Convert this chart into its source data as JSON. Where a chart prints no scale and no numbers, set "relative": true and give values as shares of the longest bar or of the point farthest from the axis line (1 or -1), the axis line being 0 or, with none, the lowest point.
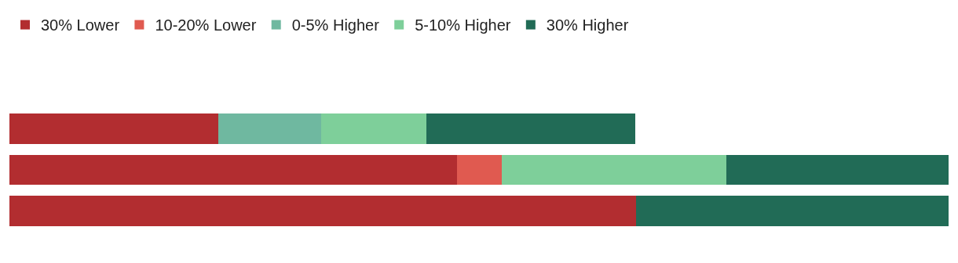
{
  "chart_data": {
    "type": "bar",
    "orientation": "horizontal",
    "stacked": true,
    "relative": true,
    "legend": "top left",
    "categories": [
      null,
      null,
      null
    ],
    "series": [
      {
        "name": "30% Lower",
        "color": "#b22d30",
        "values": [
          0.222,
          0.477,
          0.667
        ]
      },
      {
        "name": "10-20% Lower",
        "color": "#e05a50",
        "values": [
          0,
          0.047,
          0
        ]
      },
      {
        "name": "0-5% Higher",
        "color": "#6fb8a0",
        "values": [
          0.11,
          0,
          0
        ]
      },
      {
        "name": "5-10% Higher",
        "color": "#7ecf9a",
        "values": [
          0.112,
          0.239,
          0
        ]
      },
      {
        "name": "30% Higher",
        "color": "#216b56",
        "values": [
          0.222,
          0.237,
          0.333
        ]
      }
    ]
  }
}
